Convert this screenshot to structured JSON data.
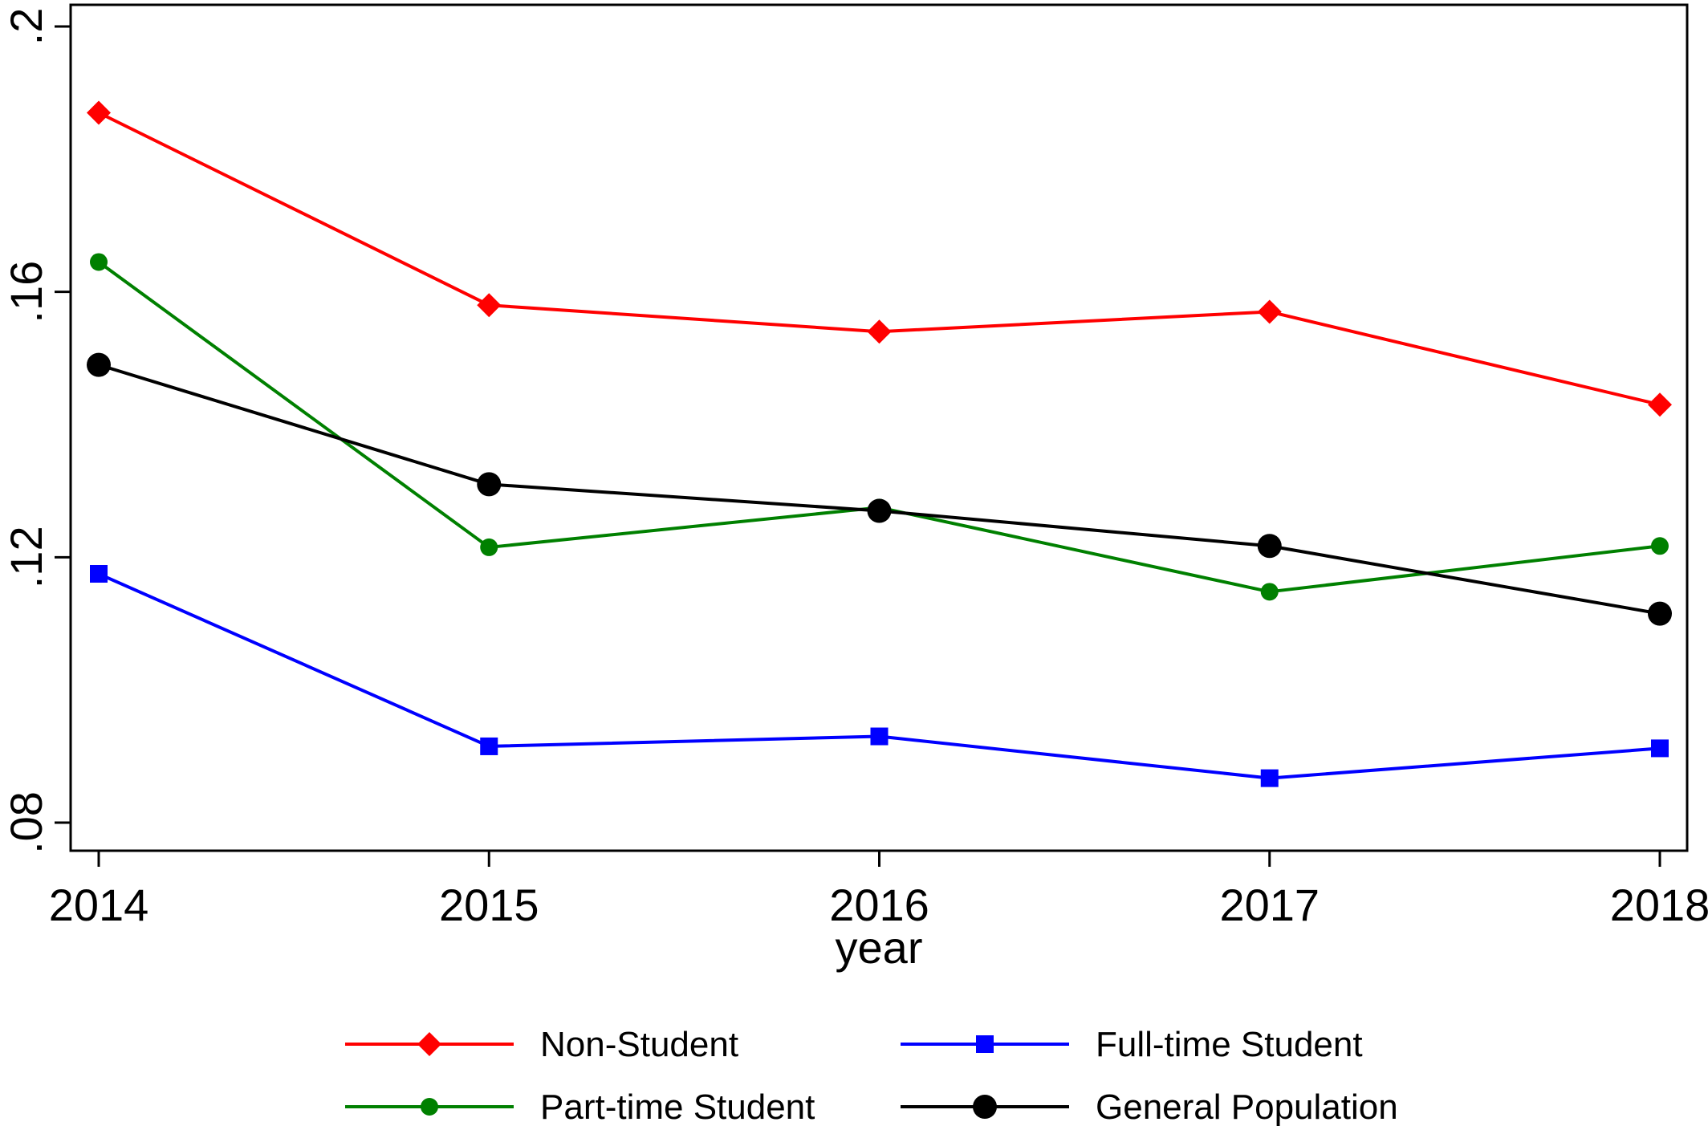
{
  "chart_data": {
    "type": "line",
    "title": "",
    "xlabel": "year",
    "ylabel": "",
    "x": [
      2014,
      2015,
      2016,
      2017,
      2018
    ],
    "x_tick_labels": [
      "2014",
      "2015",
      "2016",
      "2017",
      "2018"
    ],
    "y_ticks": [
      0.08,
      0.12,
      0.16,
      0.2
    ],
    "y_tick_labels": [
      ".08",
      ".12",
      ".16",
      ".2"
    ],
    "ylim": [
      0.08,
      0.2
    ],
    "grid": false,
    "legend_position": "bottom",
    "series": [
      {
        "name": "Non-Student",
        "color": "#ff0000",
        "marker": "diamond",
        "values": [
          0.187,
          0.158,
          0.154,
          0.157,
          0.143
        ]
      },
      {
        "name": "Full-time Student",
        "color": "#0000ff",
        "marker": "square",
        "values": [
          0.1175,
          0.0915,
          0.093,
          0.0867,
          0.0912
        ]
      },
      {
        "name": "Part-time Student",
        "color": "#008000",
        "marker": "circle-small",
        "values": [
          0.1645,
          0.1215,
          0.1275,
          0.1148,
          0.1217
        ]
      },
      {
        "name": "General Population",
        "color": "#000000",
        "marker": "circle",
        "values": [
          0.149,
          0.131,
          0.127,
          0.1217,
          0.1115
        ]
      }
    ]
  }
}
